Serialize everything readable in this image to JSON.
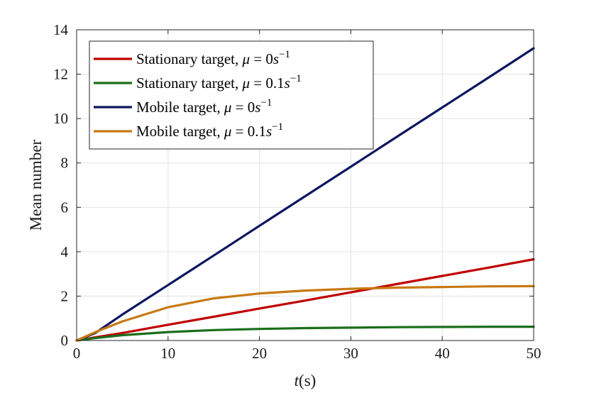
{
  "chart_data": {
    "type": "line",
    "title": "",
    "xlabel_var": "t",
    "xlabel_unit": "(s)",
    "ylabel": "Mean number",
    "xlim": [
      0,
      50
    ],
    "ylim": [
      0,
      14
    ],
    "xticks": [
      0,
      10,
      20,
      30,
      40,
      50
    ],
    "yticks": [
      0,
      2,
      4,
      6,
      8,
      10,
      12,
      14
    ],
    "grid": true,
    "legend_position": "top-left",
    "x": [
      0,
      2,
      5,
      10,
      15,
      20,
      25,
      30,
      35,
      40,
      45,
      50
    ],
    "series": [
      {
        "name_prefix": "Stationary target, ",
        "mu_value": "0",
        "mu_unit": "s",
        "mu_exp": "−1",
        "color": "#c00000",
        "values": [
          0,
          0.14,
          0.34,
          0.71,
          1.07,
          1.44,
          1.8,
          2.17,
          2.54,
          2.91,
          3.28,
          3.66
        ]
      },
      {
        "name_prefix": "Stationary target, ",
        "mu_value": "0.1",
        "mu_unit": "s",
        "mu_exp": "−1",
        "color": "#1a6e1a",
        "values": [
          0,
          0.11,
          0.24,
          0.38,
          0.47,
          0.52,
          0.56,
          0.58,
          0.6,
          0.61,
          0.62,
          0.62
        ]
      },
      {
        "name_prefix": "Mobile target, ",
        "mu_value": "0",
        "mu_unit": "s",
        "mu_exp": "−1",
        "color": "#0d1660",
        "values": [
          0,
          0.33,
          1.17,
          2.5,
          3.83,
          5.17,
          6.5,
          7.83,
          9.17,
          10.5,
          11.83,
          13.17
        ]
      },
      {
        "name_prefix": "Mobile target, ",
        "mu_value": "0.1",
        "mu_unit": "s",
        "mu_exp": "−1",
        "color": "#c87812",
        "values": [
          0,
          0.37,
          0.86,
          1.5,
          1.9,
          2.12,
          2.25,
          2.33,
          2.38,
          2.41,
          2.44,
          2.45
        ]
      }
    ]
  }
}
